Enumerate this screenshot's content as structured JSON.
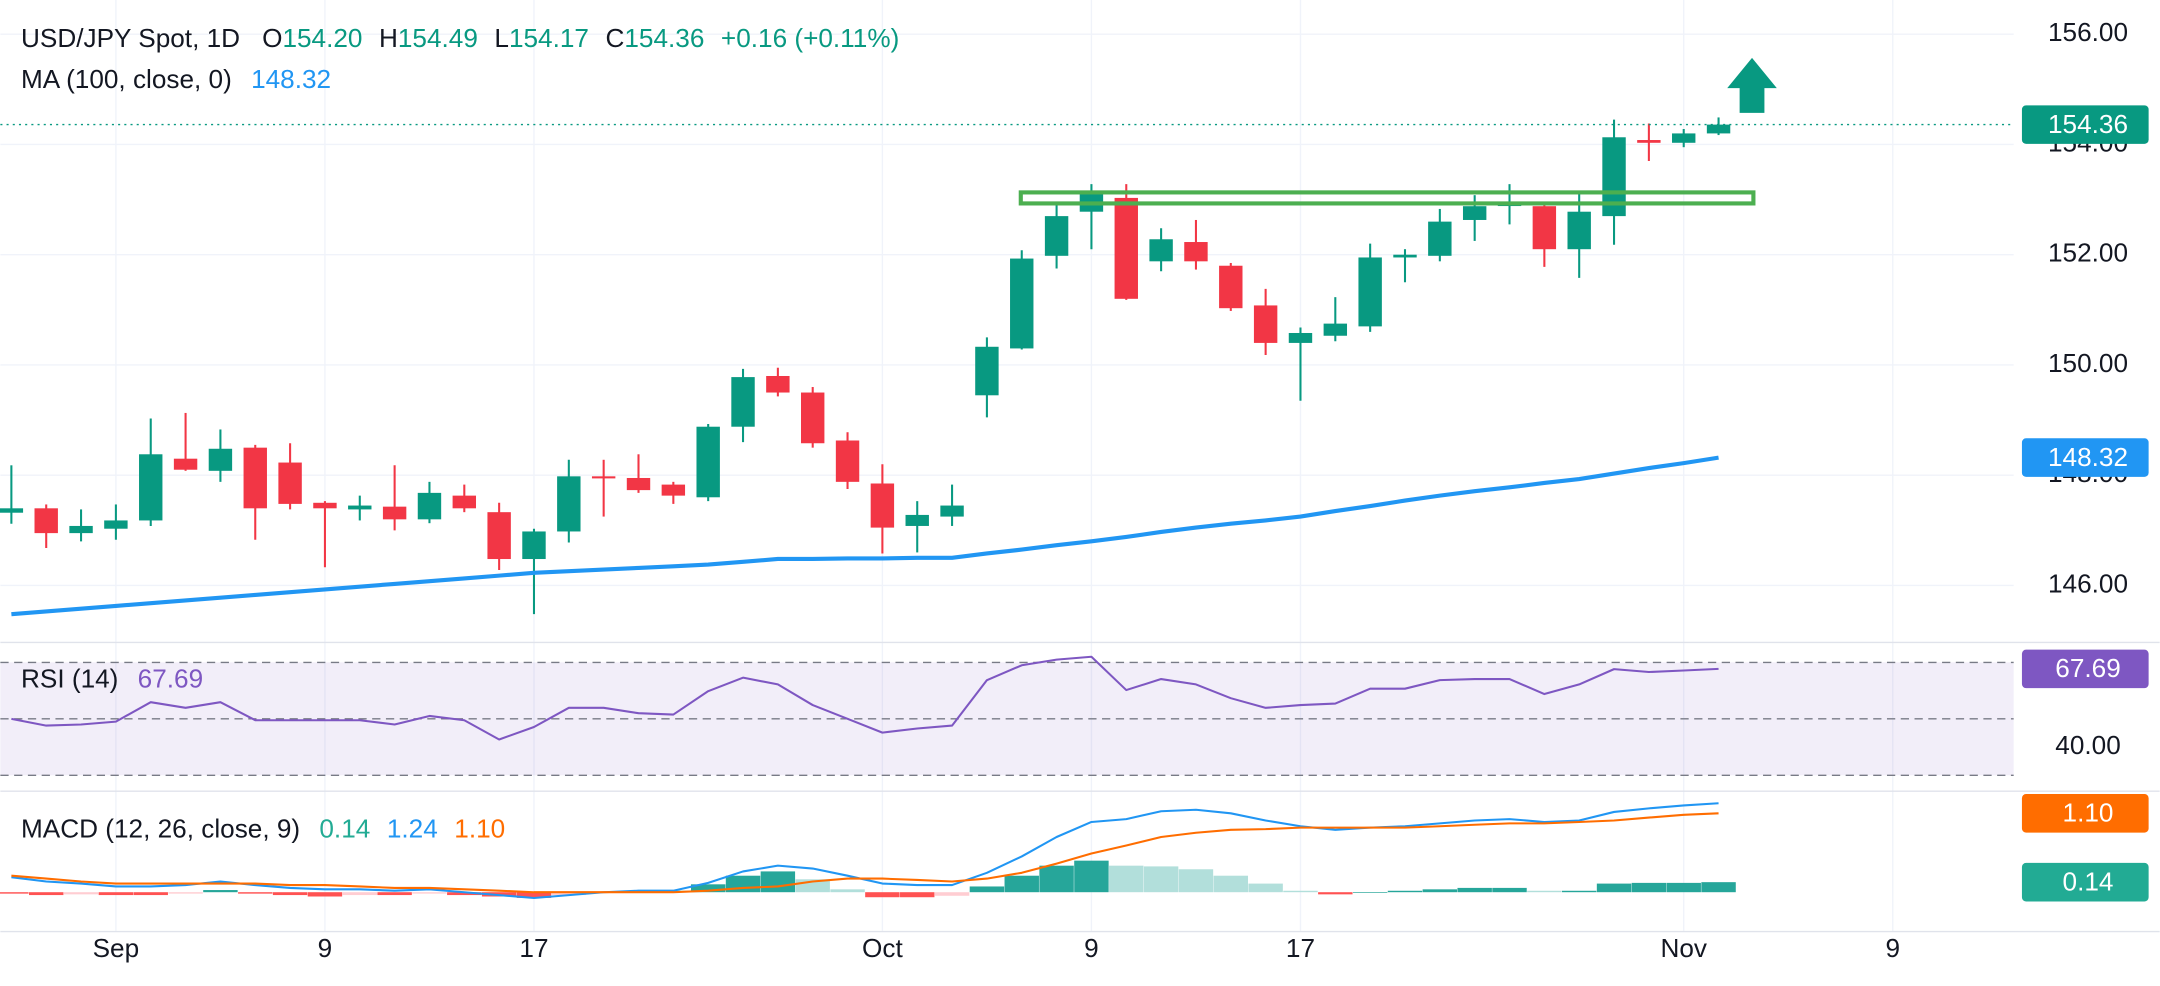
{
  "chart_data": [
    {
      "type": "candlestick",
      "header": {
        "symbol": "USD/JPY Spot, 1D",
        "fields": [
          [
            "O",
            "154.20"
          ],
          [
            "H",
            "154.49"
          ],
          [
            "L",
            "154.17"
          ],
          [
            "C",
            "154.36"
          ]
        ],
        "change": "+0.16 (+0.11%)"
      },
      "categories": [
        null,
        null,
        null,
        "Sep",
        null,
        null,
        null,
        null,
        null,
        "9",
        null,
        null,
        null,
        null,
        null,
        "17",
        null,
        null,
        null,
        null,
        null,
        null,
        null,
        null,
        null,
        "Oct",
        null,
        null,
        null,
        null,
        null,
        "9",
        null,
        null,
        null,
        null,
        null,
        "17",
        null,
        null,
        null,
        null,
        null,
        null,
        null,
        null,
        null,
        null,
        "Nov",
        null,
        null,
        null,
        null,
        null,
        "9",
        null,
        null,
        null
      ],
      "open": [
        147.32,
        147.4,
        146.95,
        147.03,
        147.18,
        148.3,
        148.08,
        148.5,
        148.23,
        147.5,
        147.38,
        147.43,
        147.2,
        147.63,
        147.33,
        146.48,
        146.98,
        147.98,
        147.95,
        147.83,
        147.6,
        148.88,
        149.8,
        149.5,
        148.63,
        147.85,
        147.08,
        147.25,
        149.45,
        150.3,
        151.98,
        152.78,
        153.03,
        151.88,
        152.23,
        151.8,
        151.08,
        150.4,
        150.53,
        150.7,
        151.95,
        151.98,
        152.63,
        152.9,
        152.88,
        152.1,
        152.7,
        154.08,
        154.03,
        154.2,
        null,
        null,
        null,
        null,
        null,
        null,
        null,
        null
      ],
      "high": [
        148.18,
        147.47,
        147.38,
        147.47,
        149.03,
        149.13,
        148.83,
        148.55,
        148.58,
        147.53,
        147.63,
        148.18,
        147.88,
        147.83,
        147.5,
        147.03,
        148.28,
        148.28,
        148.38,
        147.88,
        148.93,
        149.93,
        149.95,
        149.6,
        148.78,
        148.2,
        147.53,
        147.83,
        150.5,
        152.08,
        152.9,
        153.28,
        153.28,
        152.48,
        152.63,
        151.85,
        151.38,
        150.68,
        151.23,
        152.2,
        152.1,
        152.83,
        153.08,
        153.28,
        152.95,
        153.1,
        154.45,
        154.38,
        154.28,
        154.49,
        null,
        null,
        null,
        null,
        null,
        null,
        null,
        null
      ],
      "low": [
        147.12,
        146.68,
        146.8,
        146.83,
        147.08,
        148.08,
        147.88,
        146.83,
        147.38,
        146.33,
        147.18,
        147.0,
        147.13,
        147.33,
        146.28,
        145.48,
        146.78,
        147.25,
        147.68,
        147.48,
        147.53,
        148.6,
        149.43,
        148.5,
        147.75,
        146.58,
        146.6,
        147.08,
        149.05,
        150.28,
        151.75,
        152.1,
        151.18,
        151.7,
        151.73,
        150.98,
        150.18,
        149.35,
        150.43,
        150.6,
        151.5,
        151.88,
        152.25,
        152.55,
        151.78,
        151.58,
        152.18,
        153.7,
        153.95,
        154.17,
        null,
        null,
        null,
        null,
        null,
        null,
        null,
        null
      ],
      "close": [
        147.4,
        146.95,
        147.08,
        147.18,
        148.38,
        148.1,
        148.48,
        147.4,
        147.48,
        147.4,
        147.45,
        147.2,
        147.68,
        147.4,
        146.48,
        146.98,
        147.98,
        147.97,
        147.73,
        147.63,
        148.88,
        149.78,
        149.5,
        148.58,
        147.88,
        147.05,
        147.28,
        147.45,
        150.33,
        151.93,
        152.7,
        153.1,
        151.2,
        152.28,
        151.88,
        151.03,
        150.4,
        150.58,
        150.75,
        151.95,
        152.0,
        152.6,
        152.88,
        152.92,
        152.1,
        152.78,
        154.13,
        154.03,
        154.2,
        154.36,
        null,
        null,
        null,
        null,
        null,
        null,
        null,
        null
      ],
      "last_label": "154.36",
      "up_color": "#089981",
      "down_color": "#f23645",
      "ylim": [
        144.98,
        156.62
      ],
      "yticks": [
        {
          "value": 146,
          "label": "146.00"
        },
        {
          "value": 148,
          "label": "148.00"
        },
        {
          "value": 150,
          "label": "150.00"
        },
        {
          "value": 152,
          "label": "152.00"
        },
        {
          "value": 154,
          "label": "154.00"
        },
        {
          "value": 156,
          "label": "156.00"
        }
      ],
      "grid": true,
      "resistance_zone": [
        152.93,
        153.13
      ],
      "zone_color": "#4caf50",
      "series": [
        {
          "name": "MA (100, close, 0)",
          "color": "#2196f3",
          "last_label": "148.32",
          "values": [
            145.48,
            145.53,
            145.58,
            145.63,
            145.68,
            145.73,
            145.78,
            145.83,
            145.88,
            145.93,
            145.98,
            146.03,
            146.08,
            146.13,
            146.18,
            146.23,
            146.26,
            146.29,
            146.32,
            146.35,
            146.38,
            146.43,
            146.48,
            146.48,
            146.49,
            146.49,
            146.5,
            146.5,
            146.58,
            146.65,
            146.73,
            146.8,
            146.88,
            146.97,
            147.05,
            147.12,
            147.18,
            147.25,
            147.35,
            147.44,
            147.54,
            147.63,
            147.71,
            147.78,
            147.86,
            147.93,
            148.03,
            148.13,
            148.22,
            148.32,
            null,
            null,
            null,
            null,
            null,
            null,
            null,
            null
          ]
        }
      ]
    },
    {
      "type": "line",
      "series": [
        {
          "name": "RSI (14)",
          "color": "#7e57c2",
          "last_label": "67.69",
          "values": [
            50.0,
            47.6,
            48.0,
            49.0,
            55.9,
            53.9,
            55.9,
            49.5,
            49.5,
            49.5,
            49.5,
            48.0,
            51.0,
            49.5,
            42.7,
            47.1,
            53.9,
            53.9,
            52.0,
            51.5,
            59.8,
            64.6,
            62.2,
            54.9,
            50.0,
            45.1,
            46.6,
            47.6,
            63.7,
            69.0,
            71.0,
            72.0,
            60.2,
            64.1,
            62.2,
            57.3,
            53.9,
            54.9,
            55.4,
            60.7,
            60.7,
            63.7,
            64.1,
            64.1,
            58.8,
            62.2,
            67.6,
            66.6,
            67.1,
            67.69
          ]
        }
      ],
      "ylim": [
        25.12,
        76.83
      ],
      "yticks": [
        {
          "value": 40,
          "label": "40.00"
        }
      ],
      "levels": [
        30,
        50,
        70
      ]
    },
    {
      "type": "macd",
      "name": "MACD (12, 26, close, 9)",
      "ylim": [
        -0.54,
        1.4
      ],
      "histogram": {
        "last_label": "0.14",
        "colors": [
          "#26a69a",
          "#b2dfdb",
          "#ffcdd2",
          "#ff5252"
        ],
        "values": [
          -0.02,
          -0.04,
          -0.03,
          -0.04,
          -0.04,
          -0.02,
          0.03,
          -0.02,
          -0.04,
          -0.06,
          -0.04,
          -0.04,
          -0.02,
          -0.04,
          -0.06,
          -0.08,
          -0.04,
          0,
          0.02,
          0.02,
          0.11,
          0.23,
          0.29,
          0.18,
          0.04,
          -0.07,
          -0.07,
          -0.05,
          0.08,
          0.23,
          0.37,
          0.44,
          0.37,
          0.36,
          0.32,
          0.23,
          0.12,
          0.02,
          -0.03,
          0,
          0.02,
          0.04,
          0.06,
          0.06,
          0.02,
          0.02,
          0.12,
          0.13,
          0.13,
          0.14
        ]
      },
      "macd": {
        "color": "#2196f3",
        "last_label": "1.24",
        "values": [
          0.21,
          0.15,
          0.12,
          0.08,
          0.08,
          0.1,
          0.15,
          0.1,
          0.06,
          0.04,
          0.04,
          0.02,
          0.04,
          0,
          -0.04,
          -0.08,
          -0.04,
          0,
          0.02,
          0.02,
          0.13,
          0.29,
          0.37,
          0.33,
          0.23,
          0.12,
          0.1,
          0.1,
          0.27,
          0.5,
          0.77,
          0.98,
          1.02,
          1.13,
          1.15,
          1.1,
          1.0,
          0.92,
          0.87,
          0.9,
          0.92,
          0.96,
          1.0,
          1.02,
          0.98,
          1.0,
          1.12,
          1.17,
          1.21,
          1.24
        ]
      },
      "signal": {
        "color": "#ff6d00",
        "last_label": "1.10",
        "values": [
          0.23,
          0.19,
          0.15,
          0.12,
          0.12,
          0.12,
          0.12,
          0.12,
          0.1,
          0.1,
          0.08,
          0.06,
          0.06,
          0.04,
          0.02,
          0,
          0,
          0,
          0,
          0,
          0.02,
          0.06,
          0.08,
          0.15,
          0.19,
          0.19,
          0.17,
          0.15,
          0.19,
          0.27,
          0.4,
          0.54,
          0.65,
          0.77,
          0.83,
          0.87,
          0.88,
          0.9,
          0.9,
          0.9,
          0.9,
          0.92,
          0.94,
          0.96,
          0.96,
          0.98,
          1.0,
          1.04,
          1.08,
          1.1
        ]
      }
    }
  ]
}
